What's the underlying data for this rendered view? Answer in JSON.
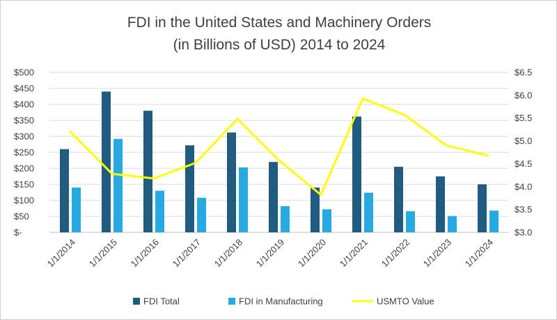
{
  "chart_data": {
    "type": "bar",
    "title_lines": [
      "FDI in the United States and Machinery Orders",
      "(in Billions of USD) 2014 to 2024"
    ],
    "categories": [
      "1/1/2014",
      "1/1/2015",
      "1/1/2016",
      "1/1/2017",
      "1/1/2018",
      "1/1/2019",
      "1/1/2020",
      "1/1/2021",
      "1/1/2022",
      "1/1/2023",
      "1/1/2024"
    ],
    "series": [
      {
        "name": "FDI Total",
        "type": "bar",
        "axis": "left",
        "color": "#1f5c7f",
        "values": [
          260,
          440,
          380,
          272,
          312,
          220,
          140,
          362,
          205,
          175,
          150
        ]
      },
      {
        "name": "FDI in Manufacturing",
        "type": "bar",
        "axis": "left",
        "color": "#27a9e1",
        "values": [
          140,
          292,
          130,
          108,
          203,
          82,
          72,
          124,
          66,
          51,
          68
        ]
      },
      {
        "name": "USMTO Value",
        "type": "line",
        "axis": "right",
        "color": "#ffff00",
        "values": [
          5.2,
          4.28,
          4.18,
          4.52,
          5.48,
          4.57,
          3.82,
          5.93,
          5.57,
          4.9,
          4.68
        ]
      }
    ],
    "left_axis": {
      "min": 0,
      "max": 500,
      "step": 50,
      "tick_labels": [
        "$-",
        "$50",
        "$100",
        "$150",
        "$200",
        "$250",
        "$300",
        "$350",
        "$400",
        "$450",
        "$500"
      ]
    },
    "right_axis": {
      "min": 3.0,
      "max": 6.5,
      "step": 0.5,
      "tick_labels": [
        "$3.0",
        "$3.5",
        "$4.0",
        "$4.5",
        "$5.0",
        "$5.5",
        "$6.0",
        "$6.5"
      ]
    },
    "grid": true,
    "legend_position": "bottom"
  }
}
